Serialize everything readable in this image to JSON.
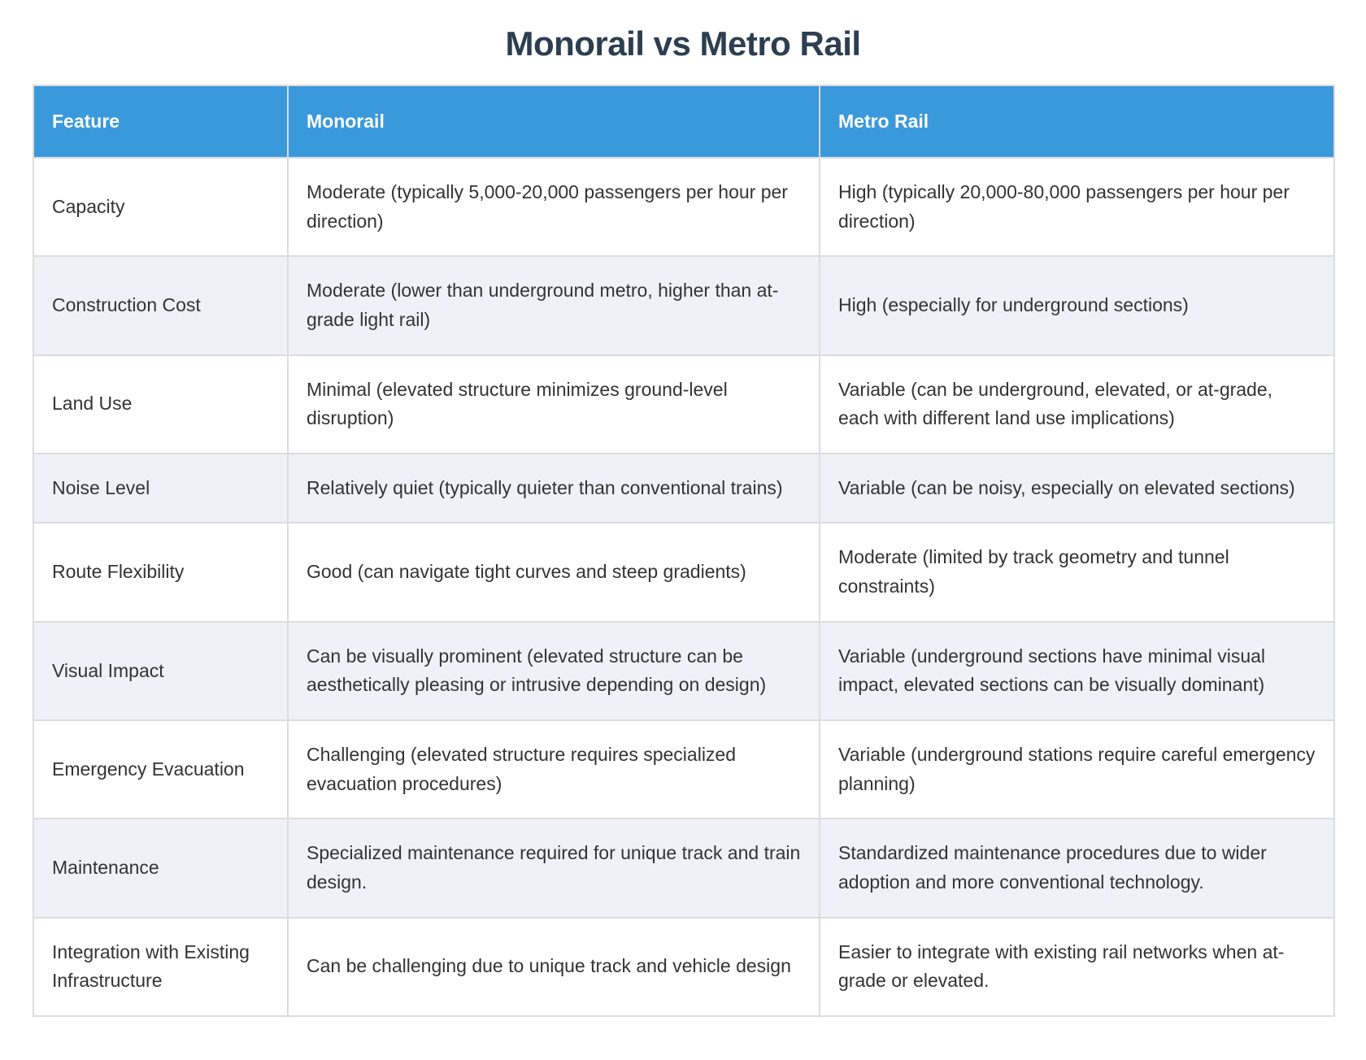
{
  "page": {
    "title": "Monorail vs Metro Rail"
  },
  "colors": {
    "header_bg": "#3a99db",
    "header_text": "#ffffff",
    "title_color": "#2c3e50",
    "body_text": "#333333",
    "row_alt_bg": "#eef2f8",
    "border_color": "#dcdcdc",
    "page_bg": "#ffffff"
  },
  "table": {
    "headers": [
      {
        "label": "Feature"
      },
      {
        "label": "Monorail"
      },
      {
        "label": "Metro Rail"
      }
    ],
    "rows": [
      {
        "feature": "Capacity",
        "monorail": "Moderate (typically 5,000-20,000 passengers per hour per direction)",
        "metro": "High (typically 20,000-80,000 passengers per hour per direction)"
      },
      {
        "feature": "Construction Cost",
        "monorail": "Moderate (lower than underground metro, higher than at-grade light rail)",
        "metro": "High (especially for underground sections)"
      },
      {
        "feature": "Land Use",
        "monorail": "Minimal (elevated structure minimizes ground-level disruption)",
        "metro": "Variable (can be underground, elevated, or at-grade, each with different land use implications)"
      },
      {
        "feature": "Noise Level",
        "monorail": "Relatively quiet (typically quieter than conventional trains)",
        "metro": "Variable (can be noisy, especially on elevated sections)"
      },
      {
        "feature": "Route Flexibility",
        "monorail": "Good (can navigate tight curves and steep gradients)",
        "metro": "Moderate (limited by track geometry and tunnel constraints)"
      },
      {
        "feature": "Visual Impact",
        "monorail": "Can be visually prominent (elevated structure can be aesthetically pleasing or intrusive depending on design)",
        "metro": "Variable (underground sections have minimal visual impact, elevated sections can be visually dominant)"
      },
      {
        "feature": "Emergency Evacuation",
        "monorail": "Challenging (elevated structure requires specialized evacuation procedures)",
        "metro": "Variable (underground stations require careful emergency planning)"
      },
      {
        "feature": "Maintenance",
        "monorail": "Specialized maintenance required for unique track and train design.",
        "metro": "Standardized maintenance procedures due to wider adoption and more conventional technology."
      },
      {
        "feature": "Integration with Existing Infrastructure",
        "monorail": "Can be challenging due to unique track and vehicle design",
        "metro": "Easier to integrate with existing rail networks when at-grade or elevated."
      }
    ]
  }
}
